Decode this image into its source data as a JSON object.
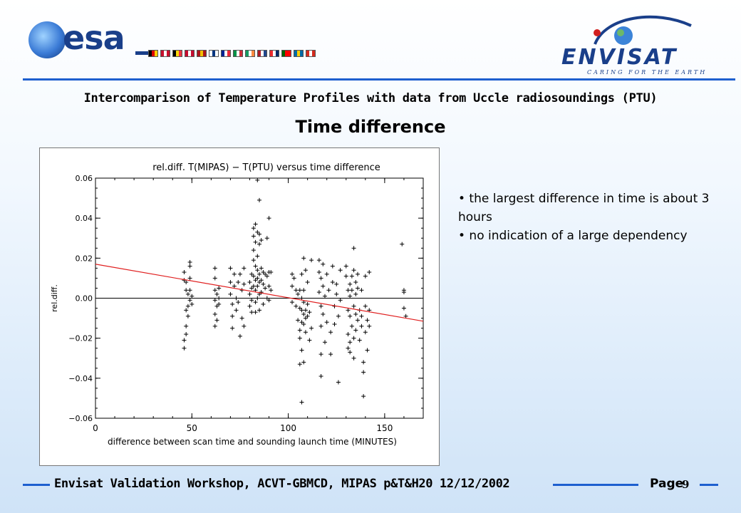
{
  "header": {
    "esa_logo_text": "esa",
    "envisat_logo_text": "ENVISAT",
    "envisat_tagline": "CARING FOR THE EARTH",
    "flag_colors": [
      [
        "#000000",
        "#dd0000",
        "#ffce00"
      ],
      [
        "#c8102e",
        "#ffffff",
        "#c8102e"
      ],
      [
        "#000000",
        "#ffd90c",
        "#ef3340"
      ],
      [
        "#c60c30",
        "#ffffff",
        "#c60c30"
      ],
      [
        "#aa151b",
        "#f1bf00",
        "#aa151b"
      ],
      [
        "#ffffff",
        "#003580",
        "#ffffff"
      ],
      [
        "#002395",
        "#ffffff",
        "#ed2939"
      ],
      [
        "#009246",
        "#ffffff",
        "#ce2b37"
      ],
      [
        "#169b62",
        "#ffffff",
        "#ff883e"
      ],
      [
        "#ae1c28",
        "#ffffff",
        "#21468b"
      ],
      [
        "#ef2b2d",
        "#ffffff",
        "#002868"
      ],
      [
        "#006600",
        "#ff0000",
        "#ff0000"
      ],
      [
        "#006aa7",
        "#fecc00",
        "#006aa7"
      ],
      [
        "#d52b1e",
        "#ffffff",
        "#d52b1e"
      ]
    ]
  },
  "slide": {
    "subtitle": "Intercomparison of Temperature Profiles with data from Uccle radiosoundings (PTU)",
    "title": "Time difference"
  },
  "bullets": [
    "• the largest difference in time is about 3 hours",
    "• no indication of a large dependency"
  ],
  "footer": {
    "text": "Envisat Validation Workshop, ACVT-GBMCD,  MIPAS p&T&H20 12/12/2002",
    "page_label": "Page",
    "page_number": "9"
  },
  "colors": {
    "accent_rule": "#1e5fcf",
    "fit_line": "#e02020"
  },
  "chart_data": {
    "type": "scatter",
    "title": "rel.diff.  T(MIPAS)  −  T(PTU)  versus  time  difference",
    "xlabel": "difference  between  scan  time  and  sounding  launch  time  (MINUTES)",
    "ylabel": "rel.diff.",
    "xlim": [
      0,
      170
    ],
    "ylim": [
      -0.06,
      0.06
    ],
    "xticks": [
      "0",
      "50",
      "100",
      "150"
    ],
    "xtick_values": [
      0,
      50,
      100,
      150
    ],
    "yticks": [
      "−0.06",
      "−0.04",
      "−0.02",
      "0.00",
      "0.02",
      "0.04",
      "0.06"
    ],
    "ytick_values": [
      -0.06,
      -0.04,
      -0.02,
      0.0,
      0.02,
      0.04,
      0.06
    ],
    "zero_line": true,
    "fit_line": {
      "x": [
        0,
        170
      ],
      "y": [
        0.017,
        -0.0115
      ]
    },
    "points": [
      [
        46,
        -0.025
      ],
      [
        46,
        -0.021
      ],
      [
        46,
        0.009
      ],
      [
        46,
        0.013
      ],
      [
        47,
        -0.018
      ],
      [
        47,
        -0.014
      ],
      [
        47,
        -0.006
      ],
      [
        47,
        0.004
      ],
      [
        47,
        0.008
      ],
      [
        48,
        -0.009
      ],
      [
        48,
        -0.004
      ],
      [
        48,
        0.002
      ],
      [
        49,
        0.004
      ],
      [
        49,
        0.01
      ],
      [
        49,
        0.016
      ],
      [
        49,
        0.018
      ],
      [
        49,
        -0.001
      ],
      [
        50,
        0.001
      ],
      [
        50,
        -0.003
      ],
      [
        62,
        0.015
      ],
      [
        62,
        0.01
      ],
      [
        62,
        0.004
      ],
      [
        62,
        -0.001
      ],
      [
        62,
        -0.008
      ],
      [
        62,
        -0.014
      ],
      [
        63,
        0.002
      ],
      [
        63,
        -0.004
      ],
      [
        63,
        -0.011
      ],
      [
        64,
        0.005
      ],
      [
        64,
        -0.003
      ],
      [
        64,
        0.0
      ],
      [
        70,
        0.015
      ],
      [
        70,
        0.008
      ],
      [
        70,
        0.002
      ],
      [
        71,
        -0.003
      ],
      [
        71,
        -0.009
      ],
      [
        71,
        -0.015
      ],
      [
        72,
        0.012
      ],
      [
        72,
        0.006
      ],
      [
        73,
        0.0
      ],
      [
        73,
        -0.006
      ],
      [
        74,
        0.008
      ],
      [
        74,
        -0.002
      ],
      [
        75,
        0.012
      ],
      [
        75,
        -0.019
      ],
      [
        76,
        0.004
      ],
      [
        76,
        -0.01
      ],
      [
        77,
        0.015
      ],
      [
        77,
        0.007
      ],
      [
        77,
        -0.014
      ],
      [
        80,
        0.008
      ],
      [
        80,
        0.002
      ],
      [
        80,
        -0.004
      ],
      [
        81,
        0.012
      ],
      [
        81,
        0.005
      ],
      [
        81,
        -0.001
      ],
      [
        81,
        -0.007
      ],
      [
        82,
        0.035
      ],
      [
        82,
        0.031
      ],
      [
        82,
        0.024
      ],
      [
        82,
        0.019
      ],
      [
        82,
        0.011
      ],
      [
        82,
        0.006
      ],
      [
        83,
        0.037
      ],
      [
        83,
        0.028
      ],
      [
        83,
        0.016
      ],
      [
        83,
        0.009
      ],
      [
        83,
        0.004
      ],
      [
        83,
        -0.002
      ],
      [
        83,
        -0.007
      ],
      [
        84,
        0.059
      ],
      [
        84,
        0.033
      ],
      [
        84,
        0.021
      ],
      [
        84,
        0.014
      ],
      [
        84,
        0.01
      ],
      [
        84,
        0.006
      ],
      [
        84,
        0.0
      ],
      [
        85,
        0.049
      ],
      [
        85,
        0.032
      ],
      [
        85,
        0.027
      ],
      [
        85,
        0.012
      ],
      [
        85,
        0.008
      ],
      [
        85,
        0.002
      ],
      [
        85,
        -0.006
      ],
      [
        86,
        0.029
      ],
      [
        86,
        0.015
      ],
      [
        86,
        0.009
      ],
      [
        86,
        0.003
      ],
      [
        87,
        0.013
      ],
      [
        87,
        0.007
      ],
      [
        87,
        -0.003
      ],
      [
        88,
        0.012
      ],
      [
        88,
        0.005
      ],
      [
        89,
        0.03
      ],
      [
        89,
        0.011
      ],
      [
        89,
        0.0
      ],
      [
        90,
        0.04
      ],
      [
        90,
        0.013
      ],
      [
        90,
        0.006
      ],
      [
        90,
        -0.001
      ],
      [
        91,
        0.013
      ],
      [
        91,
        0.004
      ],
      [
        102,
        0.012
      ],
      [
        102,
        0.006
      ],
      [
        102,
        -0.002
      ],
      [
        103,
        0.01
      ],
      [
        104,
        0.004
      ],
      [
        104,
        -0.004
      ],
      [
        105,
        0.002
      ],
      [
        105,
        -0.011
      ],
      [
        106,
        0.004
      ],
      [
        106,
        -0.005
      ],
      [
        106,
        -0.016
      ],
      [
        106,
        -0.02
      ],
      [
        106,
        -0.033
      ],
      [
        107,
        0.012
      ],
      [
        107,
        0.0
      ],
      [
        107,
        -0.006
      ],
      [
        107,
        -0.012
      ],
      [
        107,
        -0.026
      ],
      [
        107,
        -0.052
      ],
      [
        108,
        0.02
      ],
      [
        108,
        0.004
      ],
      [
        108,
        -0.002
      ],
      [
        108,
        -0.008
      ],
      [
        108,
        -0.013
      ],
      [
        108,
        -0.032
      ],
      [
        109,
        0.014
      ],
      [
        109,
        -0.006
      ],
      [
        109,
        -0.01
      ],
      [
        109,
        -0.017
      ],
      [
        110,
        0.008
      ],
      [
        110,
        -0.003
      ],
      [
        110,
        -0.009
      ],
      [
        111,
        -0.007
      ],
      [
        111,
        -0.021
      ],
      [
        112,
        0.019
      ],
      [
        112,
        -0.015
      ],
      [
        116,
        0.019
      ],
      [
        116,
        0.013
      ],
      [
        116,
        0.003
      ],
      [
        117,
        0.01
      ],
      [
        117,
        -0.004
      ],
      [
        117,
        -0.014
      ],
      [
        117,
        -0.028
      ],
      [
        117,
        -0.039
      ],
      [
        118,
        0.017
      ],
      [
        118,
        0.006
      ],
      [
        118,
        -0.008
      ],
      [
        119,
        0.001
      ],
      [
        119,
        -0.022
      ],
      [
        120,
        0.012
      ],
      [
        120,
        -0.012
      ],
      [
        121,
        0.004
      ],
      [
        122,
        -0.017
      ],
      [
        122,
        -0.028
      ],
      [
        123,
        0.016
      ],
      [
        123,
        0.008
      ],
      [
        124,
        -0.004
      ],
      [
        124,
        -0.013
      ],
      [
        125,
        0.007
      ],
      [
        125,
        0.002
      ],
      [
        126,
        -0.042
      ],
      [
        126,
        -0.009
      ],
      [
        127,
        0.014
      ],
      [
        127,
        -0.001
      ],
      [
        130,
        0.016
      ],
      [
        130,
        0.011
      ],
      [
        131,
        0.004
      ],
      [
        131,
        -0.006
      ],
      [
        131,
        -0.018
      ],
      [
        131,
        -0.025
      ],
      [
        132,
        0.007
      ],
      [
        132,
        0.001
      ],
      [
        132,
        -0.009
      ],
      [
        132,
        -0.022
      ],
      [
        132,
        -0.027
      ],
      [
        133,
        0.011
      ],
      [
        133,
        0.004
      ],
      [
        133,
        -0.014
      ],
      [
        134,
        0.025
      ],
      [
        134,
        0.014
      ],
      [
        134,
        -0.004
      ],
      [
        134,
        -0.02
      ],
      [
        134,
        -0.03
      ],
      [
        135,
        0.008
      ],
      [
        135,
        0.002
      ],
      [
        135,
        -0.008
      ],
      [
        135,
        -0.016
      ],
      [
        136,
        0.012
      ],
      [
        136,
        0.005
      ],
      [
        136,
        -0.011
      ],
      [
        137,
        -0.006
      ],
      [
        137,
        -0.021
      ],
      [
        138,
        0.004
      ],
      [
        138,
        -0.009
      ],
      [
        138,
        -0.014
      ],
      [
        139,
        -0.032
      ],
      [
        139,
        -0.037
      ],
      [
        139,
        -0.049
      ],
      [
        140,
        0.011
      ],
      [
        140,
        -0.004
      ],
      [
        140,
        -0.017
      ],
      [
        141,
        -0.011
      ],
      [
        141,
        -0.026
      ],
      [
        142,
        0.013
      ],
      [
        142,
        -0.006
      ],
      [
        142,
        -0.014
      ],
      [
        159,
        0.027
      ],
      [
        160,
        0.004
      ],
      [
        160,
        0.003
      ],
      [
        160,
        -0.005
      ],
      [
        161,
        -0.009
      ]
    ]
  }
}
